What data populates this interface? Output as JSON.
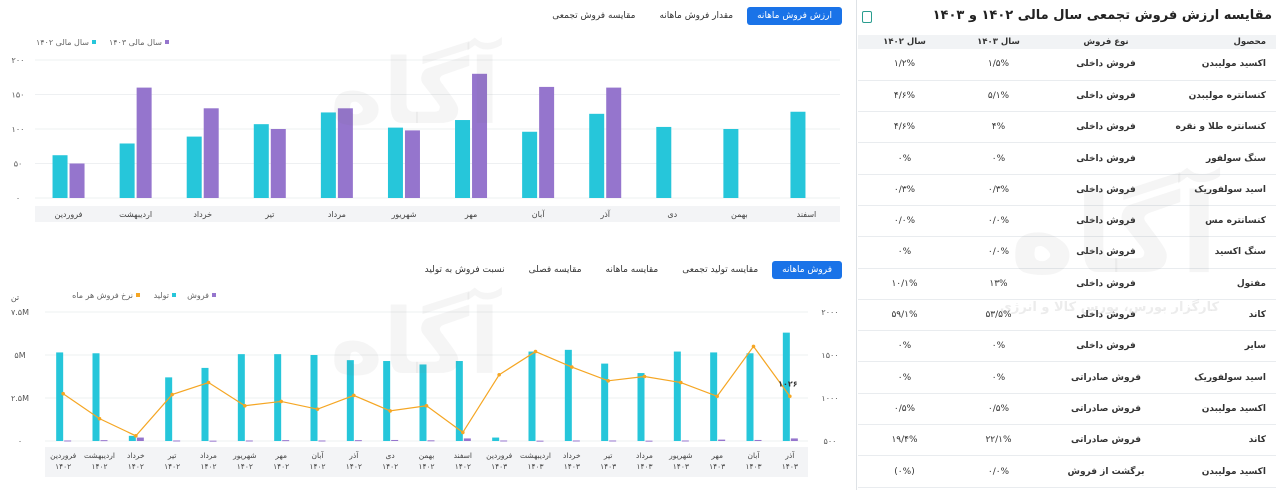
{
  "top_tabs": [
    "ارزش فروش ماهانه",
    "مقدار فروش ماهانه",
    "مقایسه فروش تجمعی"
  ],
  "bottom_tabs": [
    "فروش ماهانه",
    "مقایسه تولید تجمعی",
    "مقایسه ماهانه",
    "مقایسه فصلی",
    "نسبت فروش به تولید"
  ],
  "right_panel": {
    "title": "مقایسه ارزش فروش تجمعی سال مالی ۱۴۰۲ و ۱۴۰۳",
    "headers": [
      "محصول",
      "نوع فروش",
      "سال ۱۴۰۳",
      "سال ۱۴۰۲"
    ],
    "rows": [
      [
        "اکسید مولیبدن",
        "فروش داخلی",
        "۱/۵%",
        "۱/۲%"
      ],
      [
        "کنسانتره مولیبدن",
        "فروش داخلی",
        "۵/۱%",
        "۴/۶%"
      ],
      [
        "کنسانتره طلا و نقره",
        "فروش داخلی",
        "۴%",
        "۴/۶%"
      ],
      [
        "سنگ سولفور",
        "فروش داخلی",
        "۰%",
        "۰%"
      ],
      [
        "اسید سولفوریک",
        "فروش داخلی",
        "۰/۳%",
        "۰/۳%"
      ],
      [
        "کنسانتره مس",
        "فروش داخلی",
        "۰/۰%",
        "۰/۰%"
      ],
      [
        "سنگ اکسید",
        "فروش داخلی",
        "۰/۰%",
        "۰%"
      ],
      [
        "مفتول",
        "فروش داخلی",
        "۱۳%",
        "۱۰/۱%"
      ],
      [
        "کاند",
        "فروش داخلی",
        "۵۳/۵%",
        "۵۹/۱%"
      ],
      [
        "سایر",
        "فروش داخلی",
        "۰%",
        "۰%"
      ],
      [
        "اسید سولفوریک",
        "فروش صادراتی",
        "۰%",
        "۰%"
      ],
      [
        "اکسید مولیبدن",
        "فروش صادراتی",
        "۰/۵%",
        "۰/۵%"
      ],
      [
        "کاند",
        "فروش صادراتی",
        "۲۲/۱%",
        "۱۹/۴%"
      ],
      [
        "اکسید مولیبدن",
        "برگشت از فروش",
        "۰/۰%",
        "(۰%)"
      ]
    ]
  },
  "watermark": {
    "brand": "آگاه",
    "tagline": "کارگزار بورس، بورس کالا و انرژی"
  },
  "chart_data": [
    {
      "type": "bar",
      "legend": [
        "سال مالی ۱۴۰۳",
        "سال مالی ۱۴۰۲"
      ],
      "colors": {
        "y1403": "#9575cd",
        "y1402": "#26c6da"
      },
      "categories": [
        "فروردین",
        "اردیبهشت",
        "خرداد",
        "تیر",
        "مرداد",
        "شهریور",
        "مهر",
        "آبان",
        "آذر",
        "دی",
        "بهمن",
        "اسفند"
      ],
      "series": [
        {
          "name": "سال مالی ۱۴۰۲",
          "values": [
            62,
            79,
            89,
            107,
            124,
            102,
            113,
            96,
            122,
            103,
            100,
            125
          ]
        },
        {
          "name": "سال مالی ۱۴۰۳",
          "values": [
            50,
            160,
            130,
            100,
            130,
            98,
            180,
            161,
            160,
            null,
            null,
            null
          ]
        }
      ],
      "yticks": [
        "۰",
        "۵۰",
        "۱۰۰",
        "۱۵۰",
        "۲۰۰"
      ],
      "ylim": [
        0,
        200
      ]
    },
    {
      "type": "bar",
      "legend": [
        "فروش",
        "تولید",
        "نرخ فروش هر ماه"
      ],
      "colors": {
        "sales": "#9575cd",
        "production": "#26c6da",
        "rate": "#f5a623"
      },
      "y_unit_label": "تن",
      "categories": [
        "فروردین ۱۴۰۲",
        "اردیبهشت ۱۴۰۲",
        "خرداد ۱۴۰۲",
        "تیر ۱۴۰۲",
        "مرداد ۱۴۰۲",
        "شهریور ۱۴۰۲",
        "مهر ۱۴۰۲",
        "آبان ۱۴۰۲",
        "آذر ۱۴۰۲",
        "دی ۱۴۰۲",
        "بهمن ۱۴۰۲",
        "اسفند ۱۴۰۲",
        "فروردین ۱۴۰۳",
        "اردیبهشت ۱۴۰۳",
        "خرداد ۱۴۰۳",
        "تیر ۱۴۰۳",
        "مرداد ۱۴۰۳",
        "شهریور ۱۴۰۳",
        "مهر ۱۴۰۳",
        "آبان ۱۴۰۳",
        "آذر ۱۴۰۳"
      ],
      "series": [
        {
          "name": "تولید",
          "axis": "left",
          "values": [
            5.15,
            5.1,
            0.3,
            3.7,
            4.25,
            5.05,
            5.05,
            5.0,
            4.7,
            4.65,
            4.45,
            4.65,
            0.2,
            5.2,
            5.3,
            4.5,
            3.95,
            5.2,
            5.15,
            5.1,
            6.3
          ]
        },
        {
          "name": "فروش",
          "axis": "left",
          "values": [
            0.03,
            0.05,
            0.2,
            0.03,
            0.02,
            0.03,
            0.05,
            0.03,
            0.05,
            0.06,
            0.04,
            0.15,
            0.03,
            0.02,
            0.03,
            0.03,
            0.02,
            0.03,
            0.08,
            0.06,
            0.15
          ]
        },
        {
          "name": "نرخ فروش هر ماه",
          "type": "line",
          "axis": "right",
          "values": [
            1050,
            760,
            560,
            1040,
            1180,
            910,
            960,
            870,
            1030,
            850,
            910,
            600,
            1270,
            1540,
            1360,
            1200,
            1250,
            1180,
            1020,
            1600,
            1020
          ]
        }
      ],
      "yticks_left": [
        "۰",
        "۲.۵M",
        "۵M",
        "۷.۵M"
      ],
      "ylim_left": [
        0,
        7.5
      ],
      "yticks_right": [
        "۵۰۰",
        "۱۰۰۰",
        "۱۵۰۰",
        "۲۰۰۰"
      ],
      "ylim_right": [
        500,
        2000
      ],
      "annotation": "۱۰۲۶"
    }
  ]
}
